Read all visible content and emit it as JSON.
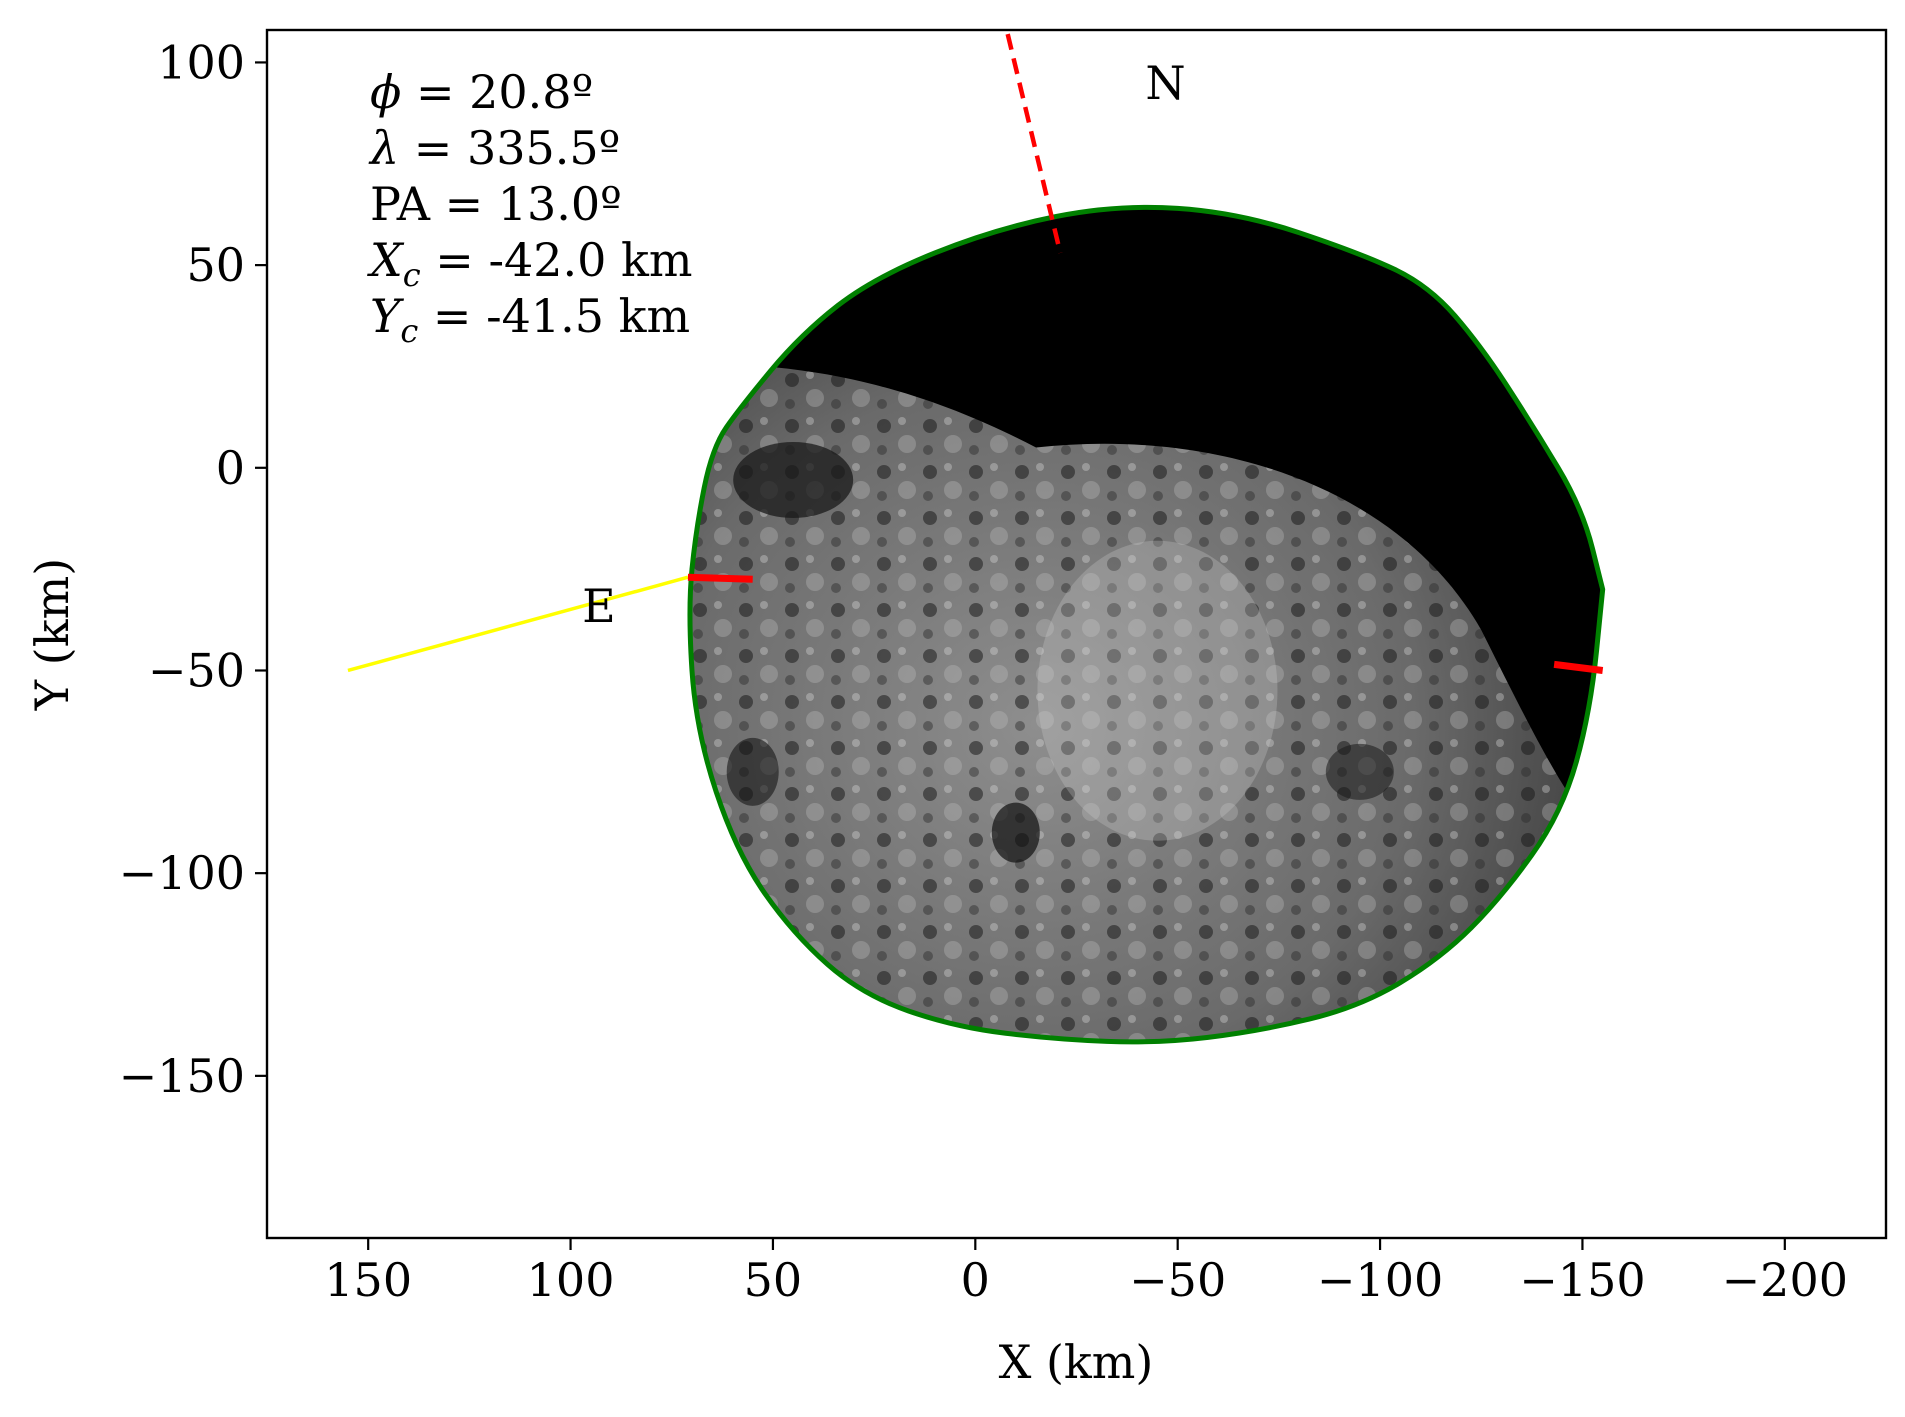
{
  "chart_data": {
    "type": "scatter",
    "xlabel": "X (km)",
    "ylabel": "Y (km)",
    "xlim": [
      175,
      -225
    ],
    "ylim": [
      -190,
      108
    ],
    "x_inverted": true,
    "xticks": [
      150,
      100,
      50,
      0,
      -50,
      -100,
      -150,
      -200
    ],
    "xtick_labels": [
      "150",
      "100",
      "50",
      "0",
      "−50",
      "−100",
      "−150",
      "−200"
    ],
    "yticks": [
      100,
      50,
      0,
      -50,
      -100,
      -150
    ],
    "ytick_labels": [
      "100",
      "50",
      "0",
      "−50",
      "−100",
      "−150"
    ],
    "grid": false,
    "annotations": [
      {
        "symbol": "ϕ",
        "text": " = 20.8º"
      },
      {
        "symbol": "λ",
        "text": " = 335.5º"
      },
      {
        "symbol": "",
        "text": "PA = 13.0º"
      },
      {
        "symbol": "X",
        "sub": "c",
        "text": " = -42.0 km"
      },
      {
        "symbol": "Y",
        "sub": "c",
        "text": " = -41.5 km"
      }
    ],
    "direction_labels": [
      {
        "text": "N",
        "x": -47,
        "y": 91
      },
      {
        "text": "E",
        "x": 93,
        "y": -38
      }
    ],
    "north_axis": {
      "x": [
        -8,
        -21
      ],
      "y": [
        107,
        53
      ],
      "color": "#ff0000",
      "style": "dashed"
    },
    "chord": {
      "x": [
        71,
        155
      ],
      "y": [
        -27,
        -50
      ],
      "color": "#ffff00",
      "end_segments": [
        {
          "x": [
            71,
            55
          ],
          "y": [
            -27,
            -27.5
          ]
        },
        {
          "x": [
            -143,
            -155
          ],
          "y": [
            -48.5,
            -50
          ]
        }
      ],
      "end_color": "#ff0000"
    },
    "limb": {
      "color": "#008000",
      "outline": [
        [
          -155,
          -30
        ],
        [
          -150,
          -10
        ],
        [
          -138,
          10
        ],
        [
          -125,
          30
        ],
        [
          -112,
          45
        ],
        [
          -95,
          53
        ],
        [
          -65,
          63
        ],
        [
          -35,
          65
        ],
        [
          -5,
          59
        ],
        [
          25,
          47
        ],
        [
          43,
          33
        ],
        [
          58,
          15
        ],
        [
          65,
          5
        ],
        [
          69,
          -15
        ],
        [
          71,
          -35
        ],
        [
          69,
          -65
        ],
        [
          59,
          -95
        ],
        [
          45,
          -115
        ],
        [
          28,
          -130
        ],
        [
          5,
          -138
        ],
        [
          -20,
          -141
        ],
        [
          -45,
          -142
        ],
        [
          -70,
          -139
        ],
        [
          -95,
          -133
        ],
        [
          -115,
          -121
        ],
        [
          -130,
          -106
        ],
        [
          -145,
          -85
        ],
        [
          -152,
          -60
        ]
      ]
    }
  }
}
